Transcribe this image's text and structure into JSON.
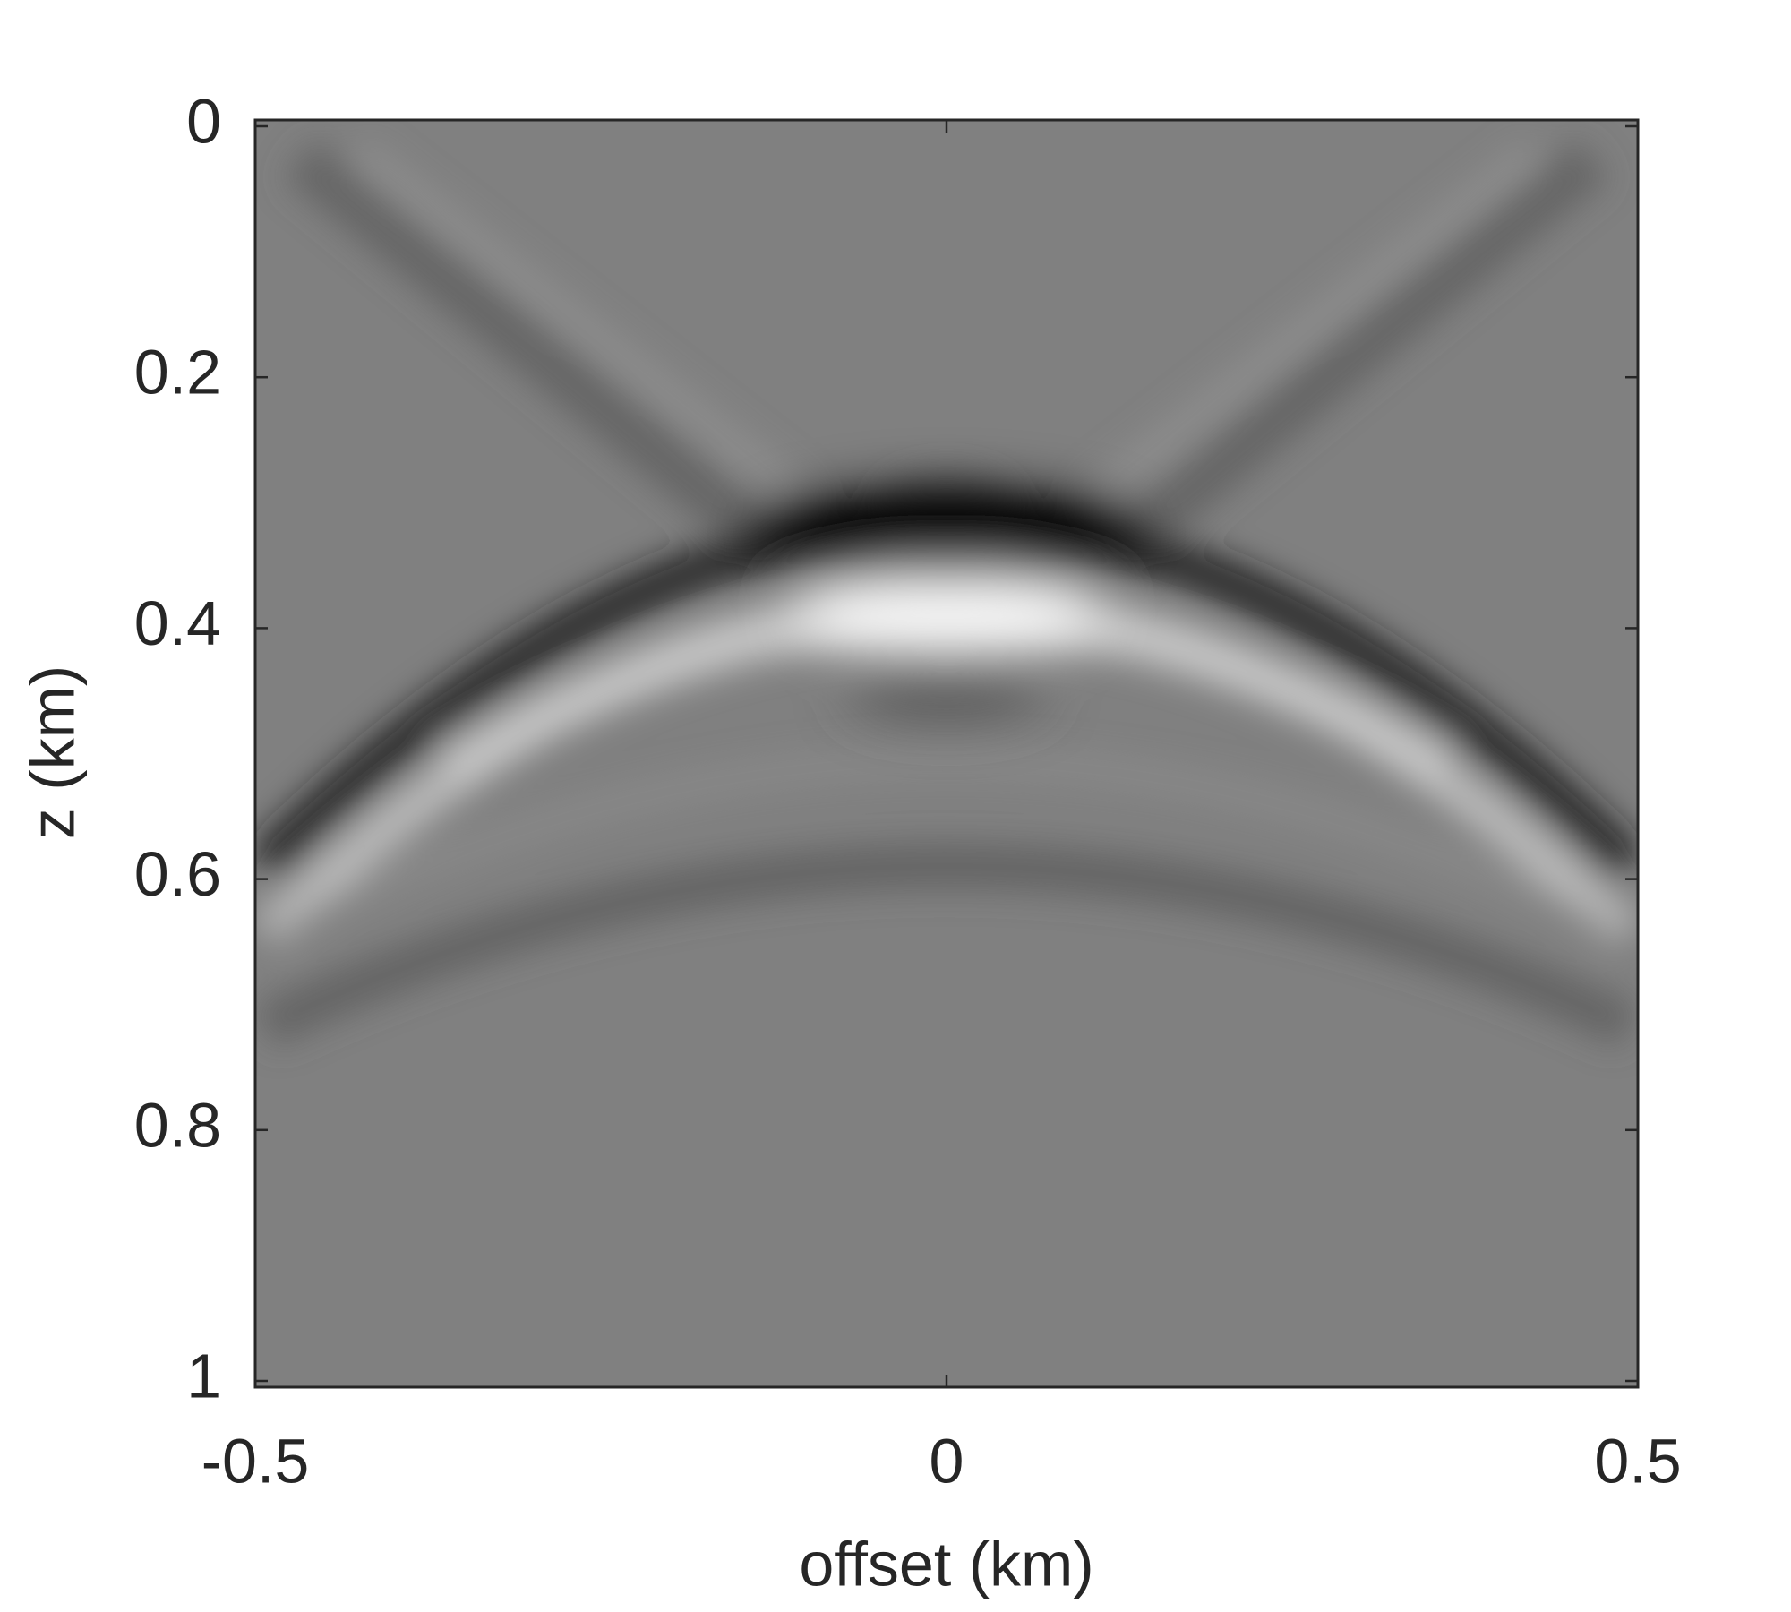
{
  "chart_data": {
    "type": "image",
    "xlabel": "offset (km)",
    "ylabel": "z (km)",
    "xlim": [
      -0.5,
      0.5
    ],
    "ylim": [
      -0.005,
      1.005
    ],
    "y_reversed": true,
    "xticks": [
      -0.5,
      0,
      0.5
    ],
    "yticks": [
      0,
      0.2,
      0.4,
      0.6,
      0.8,
      1
    ],
    "colormap": "gray"
  }
}
